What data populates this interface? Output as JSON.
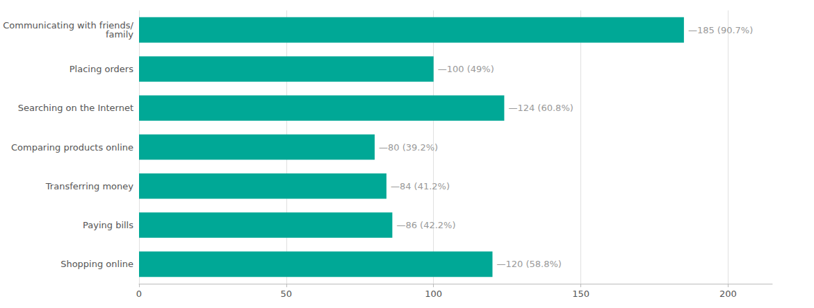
{
  "chart_data": {
    "type": "bar",
    "orientation": "horizontal",
    "categories": [
      "Shopping online",
      "Paying bills",
      "Transferring money",
      "Comparing products online",
      "Searching on the Internet",
      "Placing orders",
      "Communicating with friends/\nfamily"
    ],
    "values": [
      120,
      86,
      84,
      80,
      124,
      100,
      185
    ],
    "value_labels": [
      "—120 (58.8%)",
      "—86 (42.2%)",
      "—84 (41.2%)",
      "—80 (39.2%)",
      "—124 (60.8%)",
      "—100 (49%)",
      "—185 (90.7%)"
    ],
    "data_labels": true,
    "color": "#00A896",
    "xlim": [
      0,
      215
    ],
    "xticks": [
      0,
      50,
      100,
      150,
      200
    ],
    "grid": true
  }
}
